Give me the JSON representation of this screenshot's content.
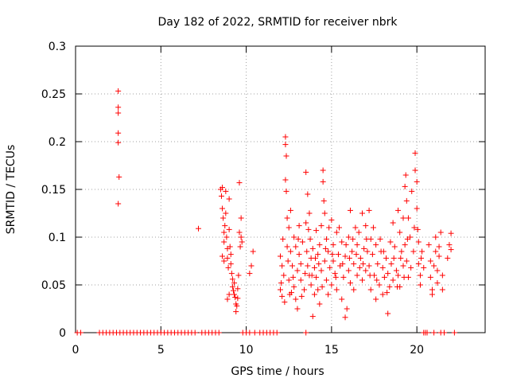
{
  "chart_data": {
    "type": "scatter",
    "title": "Day 182 of 2022, SRMTID for receiver nbrk",
    "xlabel": "GPS time / hours",
    "ylabel": "SRMTID / TECUs",
    "xlim": [
      0,
      24
    ],
    "ylim": [
      0,
      0.3
    ],
    "xticks": [
      0,
      5,
      10,
      15,
      20
    ],
    "yticks": [
      0,
      0.05,
      0.1,
      0.15,
      0.2,
      0.25,
      0.3
    ],
    "ytick_labels": [
      "0",
      "0.05",
      "0.1",
      "0.15",
      "0.2",
      "0.25",
      "0.3"
    ],
    "grid": true,
    "marker": "plus",
    "series": [
      {
        "name": "SRMTID",
        "color": "#ff0000",
        "points": [
          [
            0.1,
            0
          ],
          [
            0.3,
            0
          ],
          [
            1.4,
            0
          ],
          [
            1.6,
            0
          ],
          [
            1.8,
            0
          ],
          [
            2.0,
            0
          ],
          [
            2.2,
            0
          ],
          [
            2.4,
            0
          ],
          [
            2.5,
            0.253
          ],
          [
            2.5,
            0.236
          ],
          [
            2.5,
            0.23
          ],
          [
            2.5,
            0.209
          ],
          [
            2.5,
            0.199
          ],
          [
            2.55,
            0.163
          ],
          [
            2.5,
            0.135
          ],
          [
            2.6,
            0
          ],
          [
            2.8,
            0
          ],
          [
            3.0,
            0
          ],
          [
            3.2,
            0
          ],
          [
            3.4,
            0
          ],
          [
            3.6,
            0
          ],
          [
            3.8,
            0
          ],
          [
            4.0,
            0
          ],
          [
            4.2,
            0
          ],
          [
            4.4,
            0
          ],
          [
            4.6,
            0
          ],
          [
            4.8,
            0
          ],
          [
            5.0,
            0
          ],
          [
            5.2,
            0
          ],
          [
            5.4,
            0
          ],
          [
            5.6,
            0
          ],
          [
            5.8,
            0
          ],
          [
            6.0,
            0
          ],
          [
            6.2,
            0
          ],
          [
            6.4,
            0
          ],
          [
            6.6,
            0
          ],
          [
            6.8,
            0
          ],
          [
            7.0,
            0
          ],
          [
            7.2,
            0.109
          ],
          [
            7.4,
            0
          ],
          [
            7.6,
            0
          ],
          [
            7.8,
            0
          ],
          [
            8.0,
            0
          ],
          [
            8.2,
            0
          ],
          [
            8.4,
            0
          ],
          [
            8.5,
            0.15
          ],
          [
            8.55,
            0.143
          ],
          [
            8.6,
            0.152
          ],
          [
            8.6,
            0.13
          ],
          [
            8.65,
            0.12
          ],
          [
            8.7,
            0.105
          ],
          [
            8.7,
            0.095
          ],
          [
            8.75,
            0.112
          ],
          [
            8.8,
            0.148
          ],
          [
            8.8,
            0.125
          ],
          [
            8.85,
            0.1
          ],
          [
            8.9,
            0.088
          ],
          [
            8.9,
            0.078
          ],
          [
            8.95,
            0.068
          ],
          [
            9.0,
            0.14
          ],
          [
            9.0,
            0.108
          ],
          [
            9.05,
            0.09
          ],
          [
            9.1,
            0.082
          ],
          [
            9.1,
            0.072
          ],
          [
            9.15,
            0.062
          ],
          [
            9.2,
            0.056
          ],
          [
            9.2,
            0.048
          ],
          [
            9.25,
            0.044
          ],
          [
            9.3,
            0.052
          ],
          [
            9.3,
            0.04
          ],
          [
            9.35,
            0.037
          ],
          [
            9.4,
            0.03
          ],
          [
            9.4,
            0.022
          ],
          [
            9.45,
            0.028
          ],
          [
            9.5,
            0.046
          ],
          [
            9.5,
            0.036
          ],
          [
            9.55,
            0.06
          ],
          [
            9.6,
            0.157
          ],
          [
            9.6,
            0.105
          ],
          [
            9.65,
            0.09
          ],
          [
            9.7,
            0.12
          ],
          [
            9.7,
            0.1
          ],
          [
            9.75,
            0.095
          ],
          [
            8.9,
            0.035
          ],
          [
            9.0,
            0.04
          ],
          [
            8.7,
            0.075
          ],
          [
            8.6,
            0.08
          ],
          [
            9.8,
            0
          ],
          [
            10.0,
            0
          ],
          [
            10.2,
            0.062
          ],
          [
            10.3,
            0.07
          ],
          [
            10.4,
            0.085
          ],
          [
            10.2,
            0
          ],
          [
            10.5,
            0
          ],
          [
            10.8,
            0
          ],
          [
            11.0,
            0
          ],
          [
            11.2,
            0
          ],
          [
            11.4,
            0
          ],
          [
            11.6,
            0
          ],
          [
            11.8,
            0
          ],
          [
            12.0,
            0.08
          ],
          [
            12.0,
            0.045
          ],
          [
            12.1,
            0.07
          ],
          [
            12.1,
            0.038
          ],
          [
            12.15,
            0.098
          ],
          [
            12.2,
            0.06
          ],
          [
            12.3,
            0.205
          ],
          [
            12.3,
            0.197
          ],
          [
            12.35,
            0.185
          ],
          [
            12.3,
            0.16
          ],
          [
            12.35,
            0.148
          ],
          [
            12.4,
            0.12
          ],
          [
            12.4,
            0.09
          ],
          [
            12.45,
            0.075
          ],
          [
            12.5,
            0.11
          ],
          [
            12.5,
            0.055
          ],
          [
            12.55,
            0.04
          ],
          [
            12.6,
            0.128
          ],
          [
            12.6,
            0.085
          ],
          [
            12.7,
            0.07
          ],
          [
            12.75,
            0.058
          ],
          [
            12.8,
            0.1
          ],
          [
            12.8,
            0.048
          ],
          [
            12.9,
            0.09
          ],
          [
            12.9,
            0.035
          ],
          [
            13.0,
            0.065
          ],
          [
            13.0,
            0.025
          ],
          [
            13.1,
            0.112
          ],
          [
            13.1,
            0.082
          ],
          [
            13.2,
            0.072
          ],
          [
            13.2,
            0.055
          ],
          [
            13.3,
            0.095
          ],
          [
            13.4,
            0.045
          ],
          [
            13.5,
            0.168
          ],
          [
            13.5,
            0.0
          ],
          [
            13.5,
            0.115
          ],
          [
            13.55,
            0.085
          ],
          [
            13.6,
            0.145
          ],
          [
            13.6,
            0.07
          ],
          [
            13.7,
            0.125
          ],
          [
            13.7,
            0.06
          ],
          [
            13.75,
            0.098
          ],
          [
            13.8,
            0.078
          ],
          [
            13.8,
            0.05
          ],
          [
            13.9,
            0.017
          ],
          [
            13.9,
            0.088
          ],
          [
            14.0,
            0.068
          ],
          [
            14.0,
            0.04
          ],
          [
            14.1,
            0.107
          ],
          [
            14.1,
            0.058
          ],
          [
            14.2,
            0.082
          ],
          [
            14.2,
            0.045
          ],
          [
            14.3,
            0.092
          ],
          [
            14.3,
            0.03
          ],
          [
            14.4,
            0.112
          ],
          [
            14.4,
            0.065
          ],
          [
            14.5,
            0.17
          ],
          [
            14.5,
            0.158
          ],
          [
            14.55,
            0.138
          ],
          [
            14.6,
            0.125
          ],
          [
            14.6,
            0.075
          ],
          [
            14.7,
            0.055
          ],
          [
            14.7,
            0.098
          ],
          [
            14.8,
            0.085
          ],
          [
            14.8,
            0.04
          ],
          [
            14.9,
            0.068
          ],
          [
            15.0,
            0.118
          ],
          [
            15.0,
            0.05
          ],
          [
            15.1,
            0.092
          ],
          [
            15.1,
            0.075
          ],
          [
            15.2,
            0.062
          ],
          [
            15.3,
            0.105
          ],
          [
            15.3,
            0.045
          ],
          [
            15.4,
            0.082
          ],
          [
            15.5,
            0.07
          ],
          [
            15.6,
            0.095
          ],
          [
            15.6,
            0.035
          ],
          [
            15.7,
            0.058
          ],
          [
            15.8,
            0.08
          ],
          [
            15.8,
            0.016
          ],
          [
            15.9,
            0.025
          ],
          [
            16.0,
            0.1
          ],
          [
            16.0,
            0.065
          ],
          [
            16.1,
            0.128
          ],
          [
            16.1,
            0.052
          ],
          [
            16.2,
            0.085
          ],
          [
            16.3,
            0.072
          ],
          [
            16.3,
            0.045
          ],
          [
            16.4,
            0.11
          ],
          [
            16.5,
            0.092
          ],
          [
            16.5,
            0.06
          ],
          [
            16.6,
            0.105
          ],
          [
            16.7,
            0.078
          ],
          [
            16.8,
            0.125
          ],
          [
            16.8,
            0.055
          ],
          [
            16.9,
            0.088
          ],
          [
            17.0,
            0.112
          ],
          [
            17.0,
            0.065
          ],
          [
            17.1,
            0.085
          ],
          [
            17.2,
            0.128
          ],
          [
            17.2,
            0.07
          ],
          [
            17.3,
            0.098
          ],
          [
            17.3,
            0.045
          ],
          [
            17.4,
            0.082
          ],
          [
            17.5,
            0.06
          ],
          [
            17.6,
            0.092
          ],
          [
            17.6,
            0.035
          ],
          [
            17.7,
            0.072
          ],
          [
            17.8,
            0.05
          ],
          [
            17.9,
            0.085
          ],
          [
            18.0,
            0.068
          ],
          [
            18.0,
            0.04
          ],
          [
            18.1,
            0.058
          ],
          [
            18.2,
            0.078
          ],
          [
            18.3,
            0.02
          ],
          [
            18.3,
            0.062
          ],
          [
            18.4,
            0.048
          ],
          [
            18.5,
            0.072
          ],
          [
            18.6,
            0.115
          ],
          [
            18.6,
            0.055
          ],
          [
            18.7,
            0.09
          ],
          [
            18.8,
            0.065
          ],
          [
            18.9,
            0.128
          ],
          [
            18.9,
            0.06
          ],
          [
            19.0,
            0.105
          ],
          [
            19.0,
            0.048
          ],
          [
            19.1,
            0.085
          ],
          [
            19.2,
            0.12
          ],
          [
            19.2,
            0.07
          ],
          [
            19.3,
            0.153
          ],
          [
            19.3,
            0.092
          ],
          [
            19.35,
            0.165
          ],
          [
            19.4,
            0.138
          ],
          [
            19.4,
            0.075
          ],
          [
            19.5,
            0.12
          ],
          [
            19.5,
            0.058
          ],
          [
            19.6,
            0.1
          ],
          [
            19.7,
            0.148
          ],
          [
            19.8,
            0.085
          ],
          [
            19.9,
            0.188
          ],
          [
            19.9,
            0.17
          ],
          [
            20.0,
            0.158
          ],
          [
            20.0,
            0.13
          ],
          [
            20.05,
            0.108
          ],
          [
            20.1,
            0.095
          ],
          [
            20.1,
            0.072
          ],
          [
            20.2,
            0.06
          ],
          [
            20.2,
            0.05
          ],
          [
            20.3,
            0.085
          ],
          [
            20.4,
            0.068
          ],
          [
            20.4,
            0
          ],
          [
            20.5,
            0
          ],
          [
            20.6,
            0
          ],
          [
            20.7,
            0.092
          ],
          [
            20.8,
            0.075
          ],
          [
            20.8,
            0.058
          ],
          [
            20.9,
            0.045
          ],
          [
            20.9,
            0.04
          ],
          [
            21.0,
            0.07
          ],
          [
            21.0,
            0
          ],
          [
            21.1,
            0.1
          ],
          [
            21.1,
            0.085
          ],
          [
            21.2,
            0.065
          ],
          [
            21.2,
            0.052
          ],
          [
            21.3,
            0.09
          ],
          [
            21.3,
            0.08
          ],
          [
            21.4,
            0.105
          ],
          [
            21.4,
            0
          ],
          [
            21.5,
            0.06
          ],
          [
            21.5,
            0.045
          ],
          [
            21.6,
            0
          ],
          [
            21.8,
            0.078
          ],
          [
            21.9,
            0.092
          ],
          [
            22.0,
            0.087
          ],
          [
            22.0,
            0.104
          ],
          [
            22.2,
            0
          ],
          [
            12.05,
            0.052
          ],
          [
            12.25,
            0.032
          ],
          [
            12.65,
            0.042
          ],
          [
            13.05,
            0.098
          ],
          [
            13.25,
            0.038
          ],
          [
            13.45,
            0.062
          ],
          [
            13.65,
            0.108
          ],
          [
            13.85,
            0.06
          ],
          [
            14.05,
            0.078
          ],
          [
            14.25,
            0.072
          ],
          [
            14.45,
            0.048
          ],
          [
            14.65,
            0.088
          ],
          [
            14.85,
            0.11
          ],
          [
            15.05,
            0.082
          ],
          [
            15.25,
            0.058
          ],
          [
            15.45,
            0.11
          ],
          [
            15.65,
            0.072
          ],
          [
            15.85,
            0.092
          ],
          [
            16.05,
            0.078
          ],
          [
            16.25,
            0.098
          ],
          [
            16.45,
            0.082
          ],
          [
            16.65,
            0.068
          ],
          [
            16.85,
            0.072
          ],
          [
            17.05,
            0.098
          ],
          [
            17.25,
            0.06
          ],
          [
            17.45,
            0.11
          ],
          [
            17.65,
            0.055
          ],
          [
            17.85,
            0.098
          ],
          [
            18.05,
            0.085
          ],
          [
            18.25,
            0.042
          ],
          [
            18.45,
            0.095
          ],
          [
            18.65,
            0.078
          ],
          [
            18.85,
            0.048
          ],
          [
            19.05,
            0.078
          ],
          [
            19.25,
            0.058
          ],
          [
            19.45,
            0.098
          ],
          [
            19.65,
            0.068
          ],
          [
            19.85,
            0.11
          ],
          [
            20.25,
            0.078
          ]
        ]
      }
    ]
  }
}
